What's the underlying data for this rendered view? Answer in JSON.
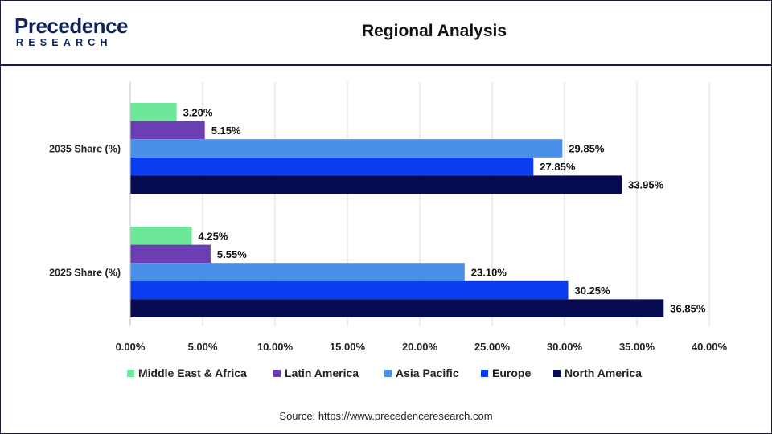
{
  "header": {
    "logo_top": "Precedence",
    "logo_bottom": "RESEARCH",
    "title": "Regional Analysis"
  },
  "chart_data": {
    "type": "bar",
    "orientation": "horizontal",
    "title": "Regional Analysis",
    "categories": [
      "2035 Share (%)",
      "2025 Share (%)"
    ],
    "series": [
      {
        "name": "Middle East & Africa",
        "color": "#6ee79a",
        "values": [
          3.2,
          4.25
        ],
        "labels": [
          "3.20%",
          "4.25%"
        ]
      },
      {
        "name": "Latin America",
        "color": "#6b3fb3",
        "values": [
          5.15,
          5.55
        ],
        "labels": [
          "5.15%",
          "5.55%"
        ]
      },
      {
        "name": "Asia Pacific",
        "color": "#4a8fe8",
        "values": [
          29.85,
          23.1
        ],
        "labels": [
          "29.85%",
          "23.10%"
        ]
      },
      {
        "name": "Europe",
        "color": "#0a3cf0",
        "values": [
          27.85,
          30.25
        ],
        "labels": [
          "27.85%",
          "30.25%"
        ]
      },
      {
        "name": "North America",
        "color": "#060a4e",
        "values": [
          33.95,
          36.85
        ],
        "labels": [
          "33.95%",
          "36.85%"
        ]
      }
    ],
    "xlim": [
      0,
      40
    ],
    "xticks": [
      "0.00%",
      "5.00%",
      "10.00%",
      "15.00%",
      "20.00%",
      "25.00%",
      "30.00%",
      "35.00%",
      "40.00%"
    ],
    "grid": true,
    "legend_position": "bottom"
  },
  "source": "Source: https://www.precedenceresearch.com"
}
